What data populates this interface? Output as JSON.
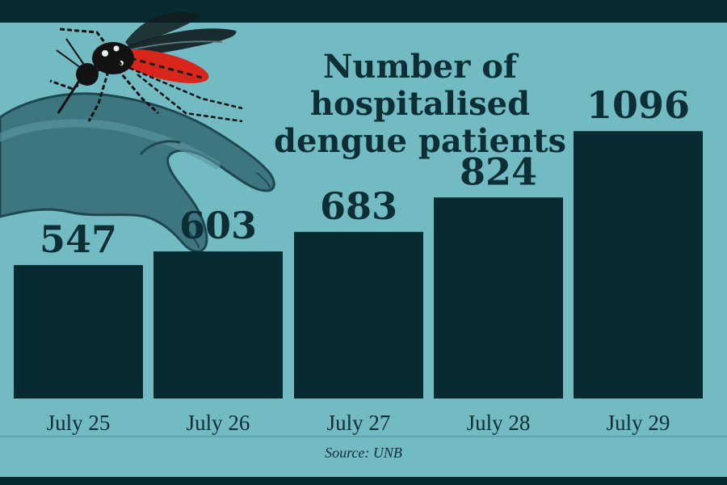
{
  "title_lines": [
    "Number of",
    "hospitalised",
    "dengue patients"
  ],
  "source": "Source: UNB",
  "colors": {
    "background": "#72bbc3",
    "bar": "#062a30",
    "text": "#0d2e35",
    "band": "#062a30"
  },
  "illustration": {
    "icons": [
      "mosquito-icon",
      "hand-icon"
    ]
  },
  "chart_data": {
    "type": "bar",
    "title": "Number of hospitalised dengue patients",
    "categories": [
      "July 25",
      "July 26",
      "July 27",
      "July 28",
      "July 29"
    ],
    "values": [
      547,
      603,
      683,
      824,
      1096
    ],
    "value_labels": [
      "547",
      "603",
      "683",
      "824",
      "1096"
    ],
    "xlabel": "",
    "ylabel": "",
    "ylim": [
      0,
      1100
    ],
    "grid": false,
    "legend": "none"
  }
}
